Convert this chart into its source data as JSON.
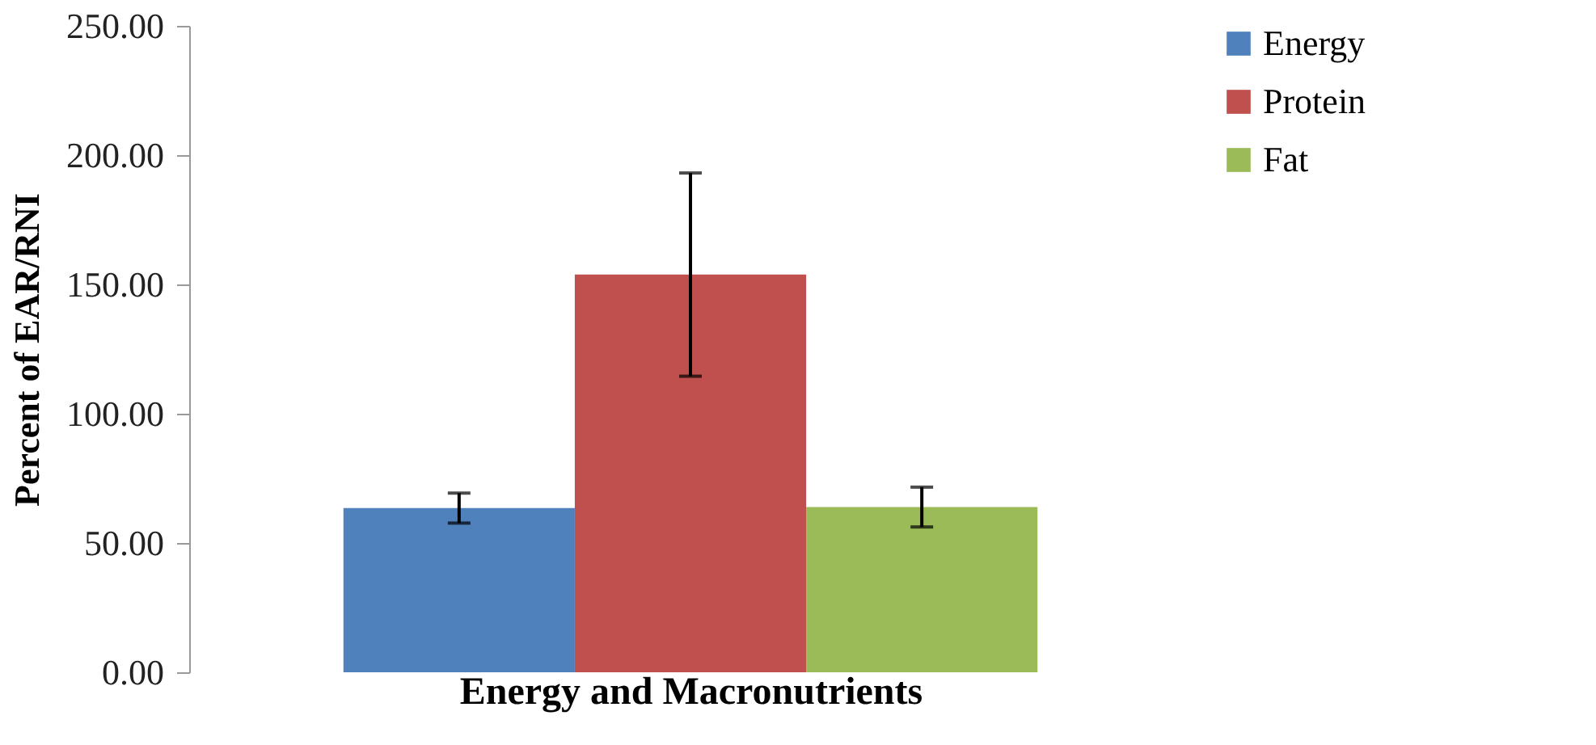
{
  "chart_data": {
    "type": "bar",
    "xlabel": "Energy and Macronutrients",
    "ylabel": "Percent of EAR/RNI",
    "categories": [
      null
    ],
    "series": [
      {
        "name": "Energy",
        "color": "#4f81bd",
        "values": [
          63.5
        ],
        "errors": [
          5.8
        ]
      },
      {
        "name": "Protein",
        "color": "#c0504d",
        "values": [
          153.8
        ],
        "errors": [
          39.3
        ]
      },
      {
        "name": "Fat",
        "color": "#9bbb59",
        "values": [
          63.9
        ],
        "errors": [
          7.7
        ]
      }
    ],
    "ylim": [
      0,
      250
    ],
    "yticks": [
      {
        "value": 0,
        "label": "0.00"
      },
      {
        "value": 50,
        "label": "50.00"
      },
      {
        "value": 100,
        "label": "100.00"
      },
      {
        "value": 150,
        "label": "150.00"
      },
      {
        "value": 200,
        "label": "200.00"
      },
      {
        "value": 250,
        "label": "250.00"
      }
    ],
    "grid": false,
    "legend": "right"
  }
}
